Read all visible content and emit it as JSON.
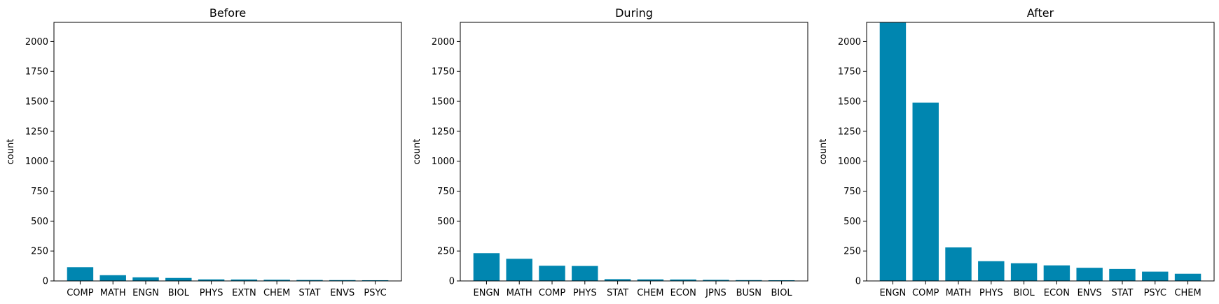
{
  "figure": {
    "bar_color": "#0086b0"
  },
  "chart_data": [
    {
      "type": "bar",
      "title": "Before",
      "ylabel": "count",
      "ylim": [
        0,
        2160
      ],
      "yticks": [
        "0",
        "250",
        "500",
        "750",
        "1000",
        "1250",
        "1500",
        "1750",
        "2000"
      ],
      "categories": [
        "COMP",
        "MATH",
        "ENGN",
        "BIOL",
        "PHYS",
        "EXTN",
        "CHEM",
        "STAT",
        "ENVS",
        "PSYC"
      ],
      "values": [
        115,
        48,
        30,
        25,
        13,
        12,
        10,
        8,
        7,
        6
      ]
    },
    {
      "type": "bar",
      "title": "During",
      "ylabel": "count",
      "ylim": [
        0,
        2160
      ],
      "yticks": [
        "0",
        "250",
        "500",
        "750",
        "1000",
        "1250",
        "1500",
        "1750",
        "2000"
      ],
      "categories": [
        "ENGN",
        "MATH",
        "COMP",
        "PHYS",
        "STAT",
        "CHEM",
        "ECON",
        "JPNS",
        "BUSN",
        "BIOL"
      ],
      "values": [
        232,
        185,
        127,
        125,
        15,
        13,
        12,
        9,
        7,
        6
      ]
    },
    {
      "type": "bar",
      "title": "After",
      "ylabel": "count",
      "ylim": [
        0,
        2160
      ],
      "yticks": [
        "0",
        "250",
        "500",
        "750",
        "1000",
        "1250",
        "1500",
        "1750",
        "2000"
      ],
      "categories": [
        "ENGN",
        "COMP",
        "MATH",
        "PHYS",
        "BIOL",
        "ECON",
        "ENVS",
        "STAT",
        "PSYC",
        "CHEM"
      ],
      "values": [
        2160,
        1490,
        280,
        165,
        148,
        130,
        110,
        100,
        78,
        60
      ]
    }
  ]
}
